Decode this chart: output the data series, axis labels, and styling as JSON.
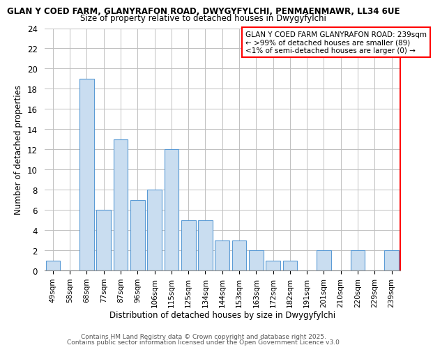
{
  "title_line1": "GLAN Y COED FARM, GLANYRAFON ROAD, DWYGYFYLCHI, PENMAENMAWR, LL34 6UE",
  "title_line2": "Size of property relative to detached houses in Dwygyfylchi",
  "xlabel": "Distribution of detached houses by size in Dwygyfylchi",
  "ylabel": "Number of detached properties",
  "categories": [
    "49sqm",
    "58sqm",
    "68sqm",
    "77sqm",
    "87sqm",
    "96sqm",
    "106sqm",
    "115sqm",
    "125sqm",
    "134sqm",
    "144sqm",
    "153sqm",
    "163sqm",
    "172sqm",
    "182sqm",
    "191sqm",
    "201sqm",
    "210sqm",
    "220sqm",
    "229sqm",
    "239sqm"
  ],
  "values": [
    1,
    0,
    19,
    6,
    13,
    7,
    8,
    12,
    5,
    5,
    3,
    3,
    2,
    1,
    1,
    0,
    2,
    0,
    2,
    0,
    2
  ],
  "bar_color": "#c9ddf0",
  "bar_edge_color": "#5b9bd5",
  "red_color": "#ff0000",
  "ylim": [
    0,
    24
  ],
  "yticks": [
    0,
    2,
    4,
    6,
    8,
    10,
    12,
    14,
    16,
    18,
    20,
    22,
    24
  ],
  "annotation_box_text": "GLAN Y COED FARM GLANYRAFON ROAD: 239sqm\n← >99% of detached houses are smaller (89)\n<1% of semi-detached houses are larger (0) →",
  "footer_line1": "Contains HM Land Registry data © Crown copyright and database right 2025.",
  "footer_line2": "Contains public sector information licensed under the Open Government Licence v3.0",
  "background_color": "#ffffff",
  "grid_color": "#c0c0c0"
}
